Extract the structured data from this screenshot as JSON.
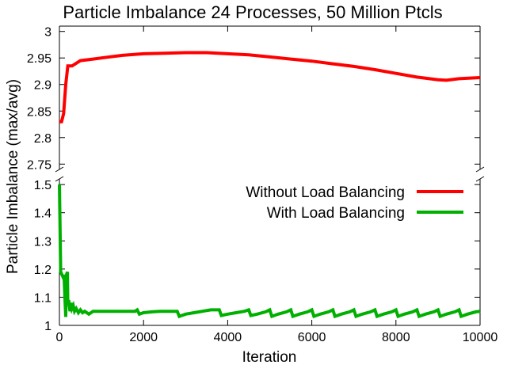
{
  "chart_data": {
    "type": "line",
    "title": "Particle Imbalance 24 Processes, 50 Million Ptcls",
    "xlabel": "Iteration",
    "ylabel": "Particle Imbalance (max/avg)",
    "xlim": [
      0,
      10000
    ],
    "x_ticks": [
      "0",
      "2000",
      "4000",
      "6000",
      "8000",
      "10000"
    ],
    "broken_axis": true,
    "upper_ylim": [
      2.74,
      3.01
    ],
    "upper_y_ticks": [
      "2.75",
      "2.8",
      "2.85",
      "2.9",
      "2.95",
      "3"
    ],
    "lower_ylim": [
      1.0,
      1.52
    ],
    "lower_y_ticks": [
      "1",
      "1.1",
      "1.2",
      "1.3",
      "1.4",
      "1.5"
    ],
    "grid": false,
    "legend_position": "upper-right of lower panel",
    "series": [
      {
        "name": "Without Load Balancing",
        "color": "#ff0000",
        "x": [
          0,
          50,
          100,
          150,
          200,
          300,
          400,
          500,
          800,
          1000,
          1500,
          2000,
          2500,
          3000,
          3500,
          4000,
          4500,
          5000,
          5500,
          6000,
          6500,
          7000,
          7500,
          8000,
          8500,
          9000,
          9200,
          9500,
          10000
        ],
        "y": [
          2.83,
          2.83,
          2.845,
          2.9,
          2.935,
          2.935,
          2.94,
          2.945,
          2.948,
          2.95,
          2.955,
          2.958,
          2.959,
          2.96,
          2.96,
          2.958,
          2.956,
          2.952,
          2.948,
          2.944,
          2.939,
          2.934,
          2.928,
          2.921,
          2.914,
          2.909,
          2.908,
          2.911,
          2.913
        ]
      },
      {
        "name": "With Load Balancing",
        "color": "#00b000",
        "x": [
          0,
          15,
          30,
          60,
          90,
          110,
          130,
          150,
          170,
          190,
          200,
          220,
          250,
          280,
          300,
          330,
          360,
          400,
          450,
          500,
          550,
          600,
          700,
          800,
          1000,
          1200,
          1400,
          1600,
          1800,
          1850,
          1900,
          2000,
          2200,
          2400,
          2600,
          2800,
          2850,
          3000,
          3200,
          3400,
          3600,
          3800,
          3850,
          4000,
          4200,
          4400,
          4500,
          4550,
          4700,
          4900,
          5000,
          5050,
          5200,
          5400,
          5500,
          5550,
          5700,
          5900,
          6000,
          6050,
          6200,
          6400,
          6500,
          6550,
          6700,
          6900,
          7000,
          7050,
          7200,
          7400,
          7500,
          7550,
          7700,
          7900,
          8000,
          8050,
          8200,
          8400,
          8500,
          8550,
          8700,
          8900,
          9000,
          9050,
          9200,
          9400,
          9500,
          9550,
          9700,
          9900,
          10000
        ],
        "y": [
          1.5,
          1.35,
          1.19,
          1.18,
          1.17,
          1.18,
          1.1,
          1.03,
          1.18,
          1.19,
          1.07,
          1.09,
          1.05,
          1.08,
          1.06,
          1.07,
          1.05,
          1.06,
          1.045,
          1.055,
          1.045,
          1.05,
          1.04,
          1.05,
          1.05,
          1.05,
          1.05,
          1.05,
          1.05,
          1.055,
          1.04,
          1.045,
          1.048,
          1.05,
          1.05,
          1.05,
          1.032,
          1.04,
          1.045,
          1.05,
          1.055,
          1.055,
          1.035,
          1.04,
          1.045,
          1.05,
          1.055,
          1.035,
          1.04,
          1.048,
          1.055,
          1.032,
          1.04,
          1.048,
          1.055,
          1.032,
          1.04,
          1.048,
          1.055,
          1.032,
          1.04,
          1.048,
          1.055,
          1.032,
          1.04,
          1.048,
          1.055,
          1.032,
          1.04,
          1.048,
          1.055,
          1.032,
          1.04,
          1.048,
          1.055,
          1.032,
          1.04,
          1.048,
          1.055,
          1.032,
          1.04,
          1.048,
          1.055,
          1.032,
          1.04,
          1.048,
          1.055,
          1.032,
          1.04,
          1.048,
          1.05
        ]
      }
    ]
  }
}
